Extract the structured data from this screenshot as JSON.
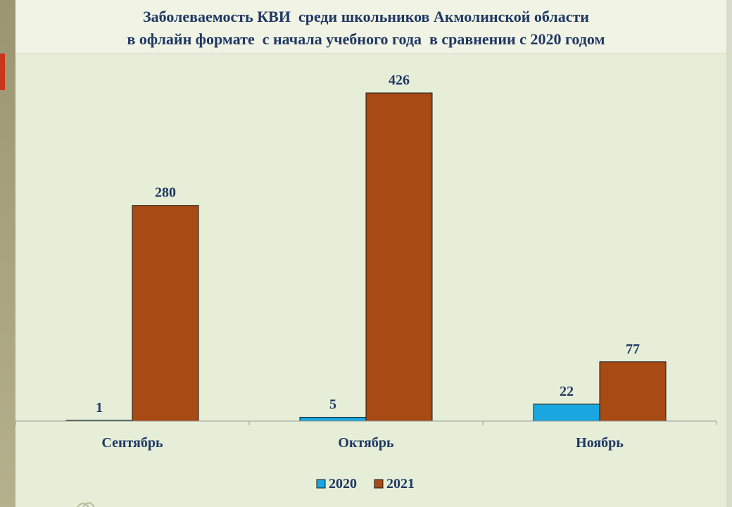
{
  "title_lines": [
    "Заболеваемость КВИ  среди школьников Акмолинской области",
    "в офлайн формате  с начала учебного года  в сравнении с 2020 годом"
  ],
  "colors": {
    "series_2020": "#1aa7e0",
    "series_2021": "#a84a14",
    "text": "#1f3864",
    "axis": "#9a9a9a"
  },
  "chart_data": {
    "type": "bar",
    "categories": [
      "Сентябрь",
      "Октябрь",
      "Ноябрь"
    ],
    "series": [
      {
        "name": "2020",
        "values": [
          1,
          5,
          22
        ]
      },
      {
        "name": "2021",
        "values": [
          280,
          426,
          77
        ]
      }
    ],
    "data_labels": [
      [
        "1",
        "5",
        "22"
      ],
      [
        "280",
        "426",
        "77"
      ]
    ],
    "ylim": [
      0,
      426
    ],
    "grid": false,
    "legend_position": "bottom"
  }
}
